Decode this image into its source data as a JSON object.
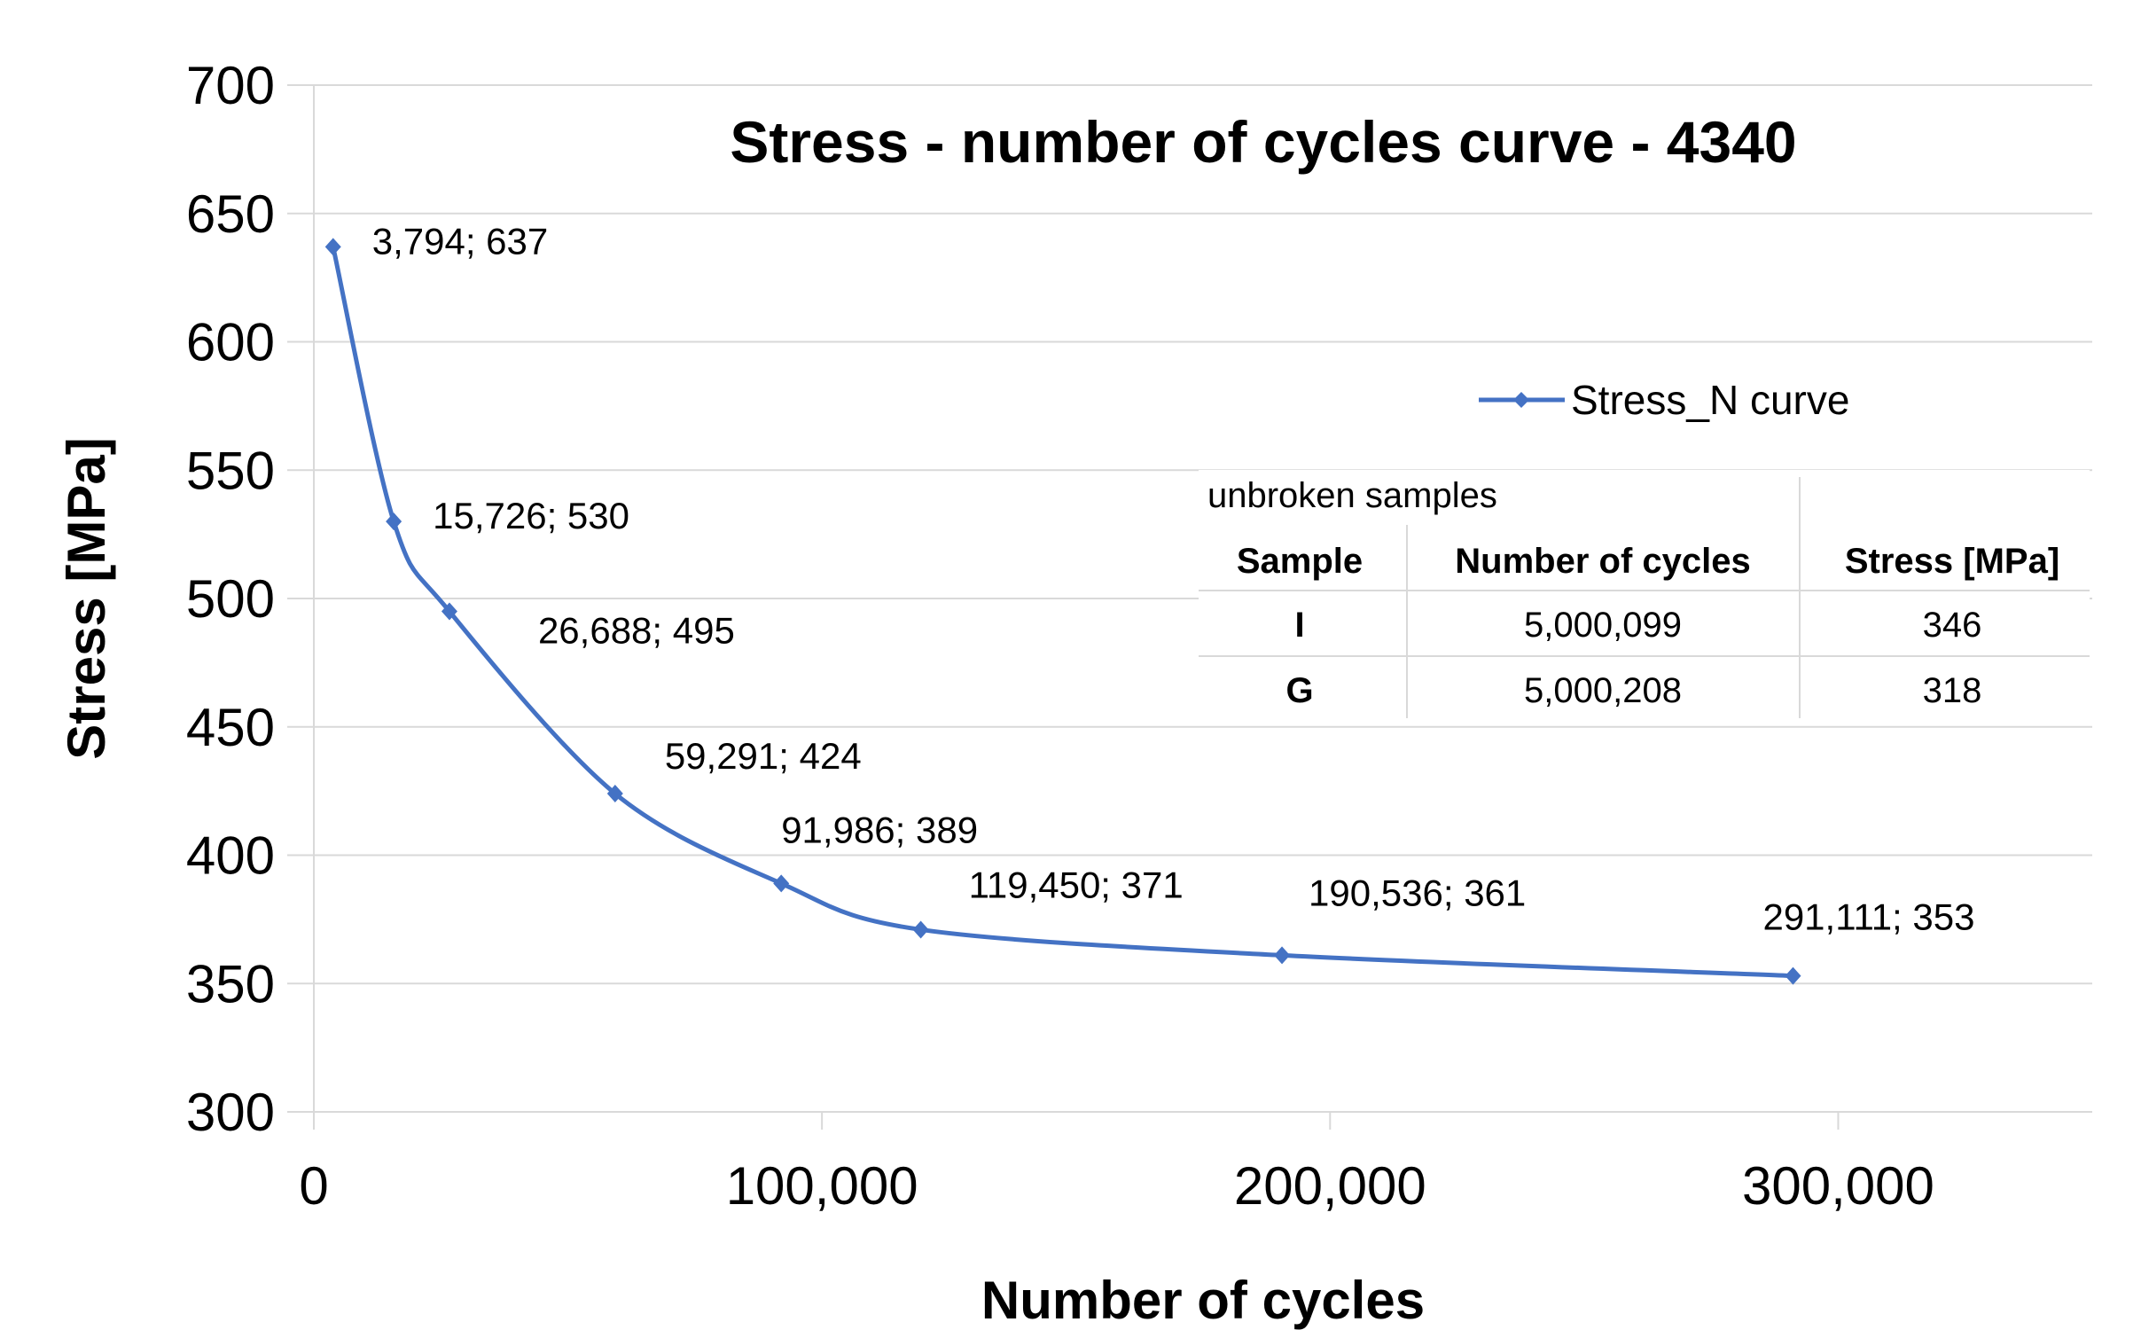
{
  "chart_data": {
    "type": "scatter",
    "title": "Stress - number of cycles curve - 4340",
    "xlabel": "Number of cycles",
    "ylabel": "Stress [MPa]",
    "xlim": [
      0,
      350000
    ],
    "ylim": [
      300,
      700
    ],
    "x_ticks": [
      0,
      100000,
      200000,
      300000
    ],
    "x_tick_labels": [
      "0",
      "100,000",
      "200,000",
      "300,000"
    ],
    "y_ticks": [
      300,
      350,
      400,
      450,
      500,
      550,
      600,
      650,
      700
    ],
    "y_tick_labels": [
      "300",
      "350",
      "400",
      "450",
      "500",
      "550",
      "600",
      "650",
      "700"
    ],
    "grid": "horizontal",
    "legend_position": "right",
    "series": [
      {
        "name": "Stress_N curve",
        "color": "#4472C4",
        "smooth": true,
        "points": [
          {
            "x": 3794,
            "y": 637,
            "label": "3,794; 637"
          },
          {
            "x": 15726,
            "y": 530,
            "label": "15,726; 530"
          },
          {
            "x": 26688,
            "y": 495,
            "label": "26,688; 495"
          },
          {
            "x": 59291,
            "y": 424,
            "label": "59,291; 424"
          },
          {
            "x": 91986,
            "y": 389,
            "label": "91,986; 389"
          },
          {
            "x": 119450,
            "y": 371,
            "label": "119,450; 371"
          },
          {
            "x": 190536,
            "y": 361,
            "label": "190,536; 361"
          },
          {
            "x": 291111,
            "y": 353,
            "label": "291,111; 353"
          }
        ]
      }
    ],
    "table": {
      "caption": "unbroken samples",
      "headers": [
        "Sample",
        "Number of cycles",
        "Stress [MPa]"
      ],
      "rows": [
        [
          "I",
          "5,000,099",
          "346"
        ],
        [
          "G",
          "5,000,208",
          "318"
        ]
      ]
    }
  }
}
